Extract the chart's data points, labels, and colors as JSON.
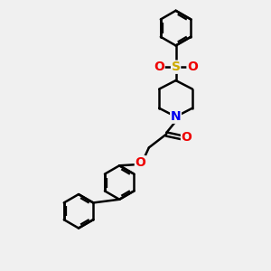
{
  "background_color": "#f0f0f0",
  "bond_color": "#000000",
  "bond_width": 1.8,
  "atom_colors": {
    "N": "#0000ee",
    "O": "#ee0000",
    "S": "#ccaa00",
    "C": "#000000"
  },
  "figsize": [
    3.0,
    3.0
  ],
  "dpi": 100,
  "xlim": [
    0,
    10
  ],
  "ylim": [
    0,
    10
  ]
}
